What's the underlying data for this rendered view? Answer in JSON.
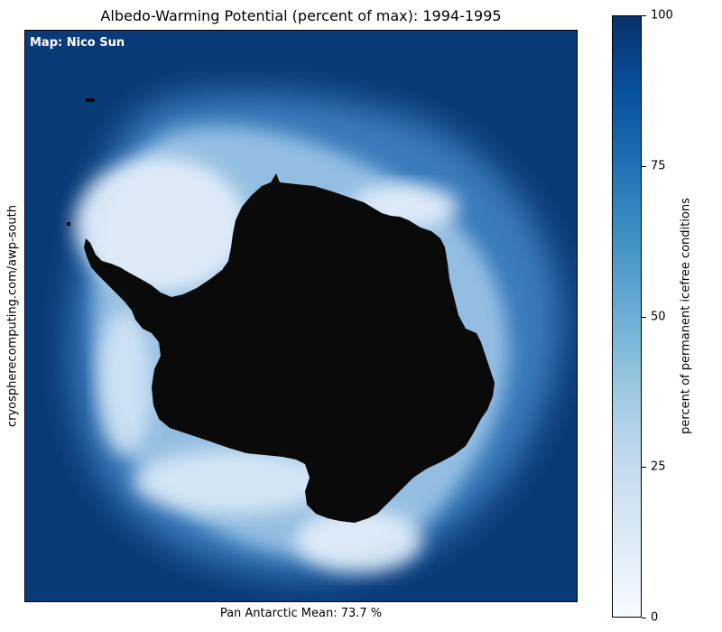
{
  "map": {
    "title": "Albedo-Warming Potential (percent of max): 1994-1995",
    "credit": "Map: Nico Sun",
    "source_url": "cryospherecomputing.com/awp-south",
    "mean_label": "Pan Antarctic Mean: 73.7 %",
    "background_color": "#0b3a78",
    "land_color": "#0a0a0a"
  },
  "colorbar": {
    "label": "percent of permanent icefree conditions",
    "min": 0,
    "max": 100,
    "ticks": [
      {
        "value": 0,
        "label": "0"
      },
      {
        "value": 25,
        "label": "25"
      },
      {
        "value": 50,
        "label": "50"
      },
      {
        "value": 75,
        "label": "75"
      },
      {
        "value": 100,
        "label": "100"
      }
    ],
    "colors": [
      "#f7fbff",
      "#deebf7",
      "#c6dbef",
      "#9ecae1",
      "#6baed6",
      "#4292c6",
      "#2171b5",
      "#08519c",
      "#08306b"
    ]
  }
}
